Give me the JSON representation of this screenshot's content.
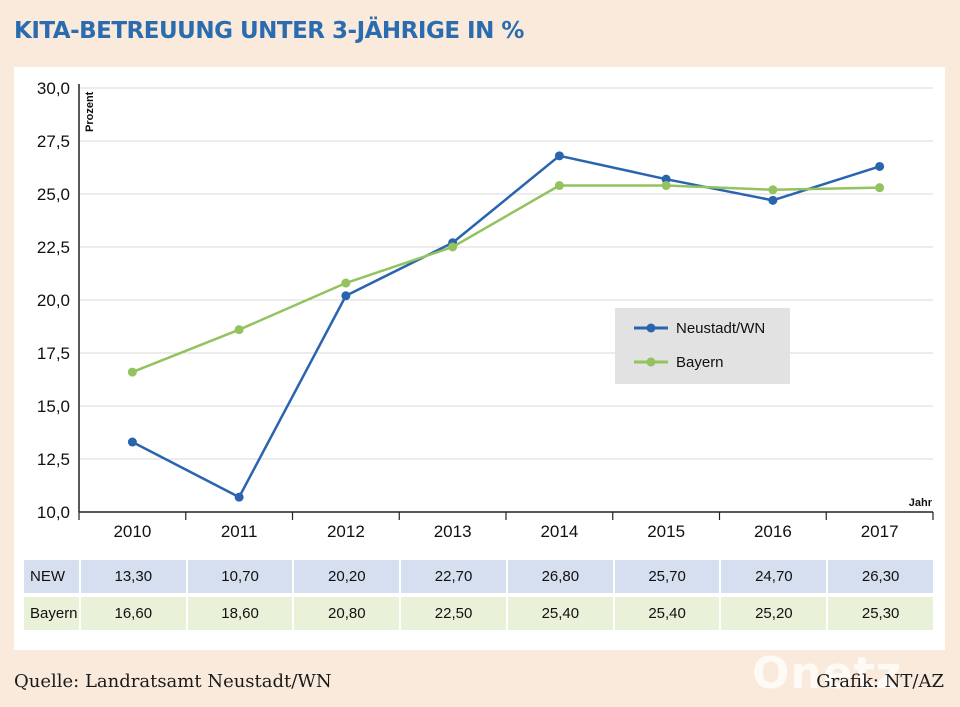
{
  "title": "KITA-BETREUUNG UNTER 3-JÄHRIGE IN %",
  "source": "Quelle: Landratsamt Neustadt/WN",
  "credit": "Grafik: NT/AZ",
  "watermark": "Onetz",
  "colors": {
    "neustadt": "#2b64ae",
    "bayern": "#93c35e",
    "title": "#2b6cb0",
    "background": "#f9eadb",
    "row_new": "#d5dff0",
    "row_bayern": "#e9f2d9",
    "legend_bg": "#e2e2e2"
  },
  "chart_data": {
    "type": "line",
    "title": "KITA-BETREUUNG UNTER 3-JÄHRIGE IN %",
    "ylabel": "Prozent",
    "xlabel": "Jahr",
    "categories": [
      "2010",
      "2011",
      "2012",
      "2013",
      "2014",
      "2015",
      "2016",
      "2017"
    ],
    "ylim": [
      10,
      30
    ],
    "yticks": [
      10,
      12.5,
      15,
      17.5,
      20,
      22.5,
      25,
      27.5,
      30
    ],
    "ytick_labels": [
      "10,0",
      "12,5",
      "15,0",
      "17,5",
      "20,0",
      "22,5",
      "25,0",
      "27,5",
      "30,0"
    ],
    "grid": true,
    "legend_position": "center-right",
    "series": [
      {
        "name": "Neustadt/WN",
        "key": "neustadt",
        "values": [
          13.3,
          10.7,
          20.2,
          22.7,
          26.8,
          25.7,
          24.7,
          26.3
        ]
      },
      {
        "name": "Bayern",
        "key": "bayern",
        "values": [
          16.6,
          18.6,
          20.8,
          22.5,
          25.4,
          25.4,
          25.2,
          25.3
        ]
      }
    ]
  },
  "table": {
    "rows": [
      {
        "key": "new",
        "label": "NEW",
        "values": [
          "13,30",
          "10,70",
          "20,20",
          "22,70",
          "26,80",
          "25,70",
          "24,70",
          "26,30"
        ]
      },
      {
        "key": "bay",
        "label": "Bayern",
        "values": [
          "16,60",
          "18,60",
          "20,80",
          "22,50",
          "25,40",
          "25,40",
          "25,20",
          "25,30"
        ]
      }
    ]
  }
}
